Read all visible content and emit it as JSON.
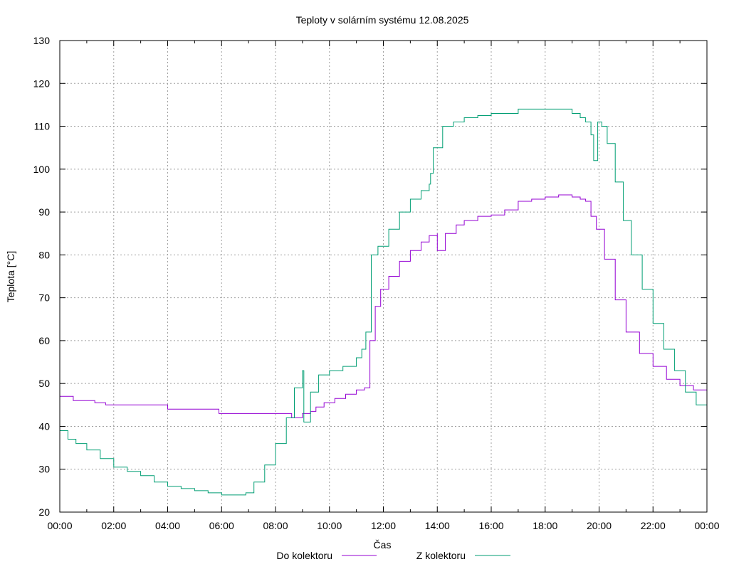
{
  "chart_data": {
    "type": "line",
    "title": "Teploty v solárním systému 12.08.2025",
    "xlabel": "Čas",
    "ylabel": "Teplota [°C]",
    "xlim": [
      0,
      24
    ],
    "ylim": [
      20,
      130
    ],
    "x_ticks": [
      "00:00",
      "02:00",
      "04:00",
      "06:00",
      "08:00",
      "10:00",
      "12:00",
      "14:00",
      "16:00",
      "18:00",
      "20:00",
      "22:00",
      "00:00"
    ],
    "y_ticks": [
      20,
      30,
      40,
      50,
      60,
      70,
      80,
      90,
      100,
      110,
      120,
      130
    ],
    "grid": true,
    "legend_position": "bottom",
    "series": [
      {
        "name": "Do kolektoru",
        "color": "#9400d3",
        "x": [
          0,
          0.5,
          0.5,
          1.3,
          1.3,
          1.7,
          1.7,
          2.0,
          2.0,
          4.0,
          4.0,
          5.9,
          5.9,
          8.4,
          8.6,
          8.9,
          9.0,
          9.3,
          9.5,
          9.8,
          10.2,
          10.6,
          11.0,
          11.3,
          11.5,
          11.5,
          11.7,
          11.9,
          12.2,
          12.6,
          13.0,
          13.4,
          13.7,
          14.0,
          14.0,
          14.3,
          14.7,
          15.0,
          15.5,
          16.0,
          16.5,
          17.0,
          17.5,
          18.0,
          18.5,
          19.0,
          19.3,
          19.5,
          19.7,
          19.9,
          20.2,
          20.6,
          21.0,
          21.5,
          22.0,
          22.5,
          23.0,
          23.5,
          24.0
        ],
        "y": [
          47,
          47,
          46,
          46,
          45.5,
          45.5,
          45,
          45,
          45,
          45,
          44,
          44,
          43,
          43,
          42,
          42,
          43,
          43.5,
          44.5,
          45.5,
          46.5,
          47.5,
          48.5,
          49,
          49,
          60,
          68,
          72,
          75,
          78.5,
          81,
          83,
          84.5,
          85,
          81,
          85,
          87,
          88,
          89,
          89.3,
          90.5,
          92.5,
          93,
          93.5,
          94,
          93.5,
          93,
          92.5,
          89,
          86,
          79,
          69.5,
          62,
          57,
          54,
          51,
          49.5,
          48.5,
          47
        ]
      },
      {
        "name": "Z kolektoru",
        "color": "#009e73",
        "x": [
          0,
          0.3,
          0.6,
          1.0,
          1.5,
          2.0,
          2.5,
          3.0,
          3.5,
          4.0,
          4.5,
          5.0,
          5.5,
          6.0,
          6.6,
          6.9,
          7.2,
          7.6,
          8.0,
          8.4,
          8.7,
          9.0,
          9.05,
          9.3,
          9.6,
          10.0,
          10.5,
          11.0,
          11.2,
          11.35,
          11.55,
          11.8,
          12.2,
          12.6,
          13.0,
          13.4,
          13.7,
          13.75,
          13.85,
          14.2,
          14.6,
          15.0,
          15.5,
          16.0,
          16.5,
          17.0,
          17.5,
          18.0,
          18.5,
          19.0,
          19.3,
          19.5,
          19.7,
          19.8,
          19.95,
          20.1,
          20.3,
          20.6,
          20.9,
          21.2,
          21.6,
          22.0,
          22.4,
          22.8,
          23.2,
          23.6,
          24.0
        ],
        "y": [
          39,
          37,
          36,
          34.5,
          32.5,
          30.5,
          29.5,
          28.5,
          27,
          26,
          25.5,
          25,
          24.5,
          24,
          24,
          24.5,
          27,
          31,
          36,
          42,
          49,
          53,
          41,
          48,
          52,
          53,
          54,
          56,
          58,
          62,
          80,
          82,
          86,
          90,
          93,
          95,
          96.5,
          99,
          105,
          110,
          111,
          112,
          112.5,
          113,
          113,
          114,
          114,
          114,
          114,
          113,
          112,
          111,
          108,
          102,
          111,
          110,
          106,
          97,
          88,
          80,
          72,
          64,
          58,
          53,
          48,
          45,
          42
        ]
      }
    ]
  }
}
